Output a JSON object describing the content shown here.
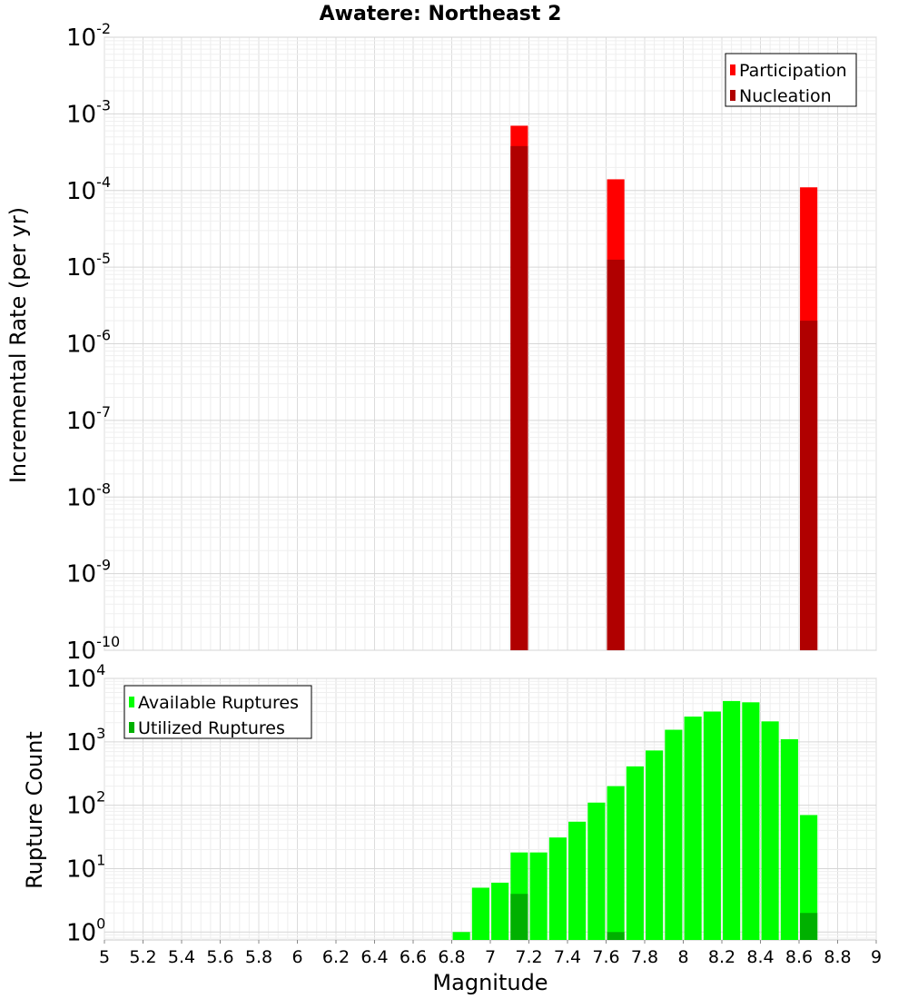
{
  "title": "Awatere: Northeast 2",
  "x_axis": {
    "label": "Magnitude",
    "range": [
      5,
      9
    ],
    "ticks": [
      "5",
      "5.2",
      "5.4",
      "5.6",
      "5.8",
      "6",
      "6.2",
      "6.4",
      "6.6",
      "6.8",
      "7",
      "7.2",
      "7.4",
      "7.6",
      "7.8",
      "8",
      "8.2",
      "8.4",
      "8.6",
      "8.8",
      "9"
    ]
  },
  "chart_data": [
    {
      "type": "bar",
      "title": "Awatere: Northeast 2",
      "xlabel": "Magnitude",
      "ylabel": "Incremental Rate (per yr)",
      "yscale": "log",
      "ylim_exp": [
        -10,
        -2
      ],
      "y_tick_base": "10",
      "y_tick_exponents": [
        "-10",
        "-9",
        "-8",
        "-7",
        "-6",
        "-5",
        "-4",
        "-3",
        "-2"
      ],
      "legend_position": "top-right",
      "bar_width": 0.09,
      "series": [
        {
          "name": "Participation",
          "color": "#ff0000",
          "x": [
            7.15,
            7.65,
            8.65
          ],
          "values": [
            0.0007,
            0.00014,
            0.00011
          ]
        },
        {
          "name": "Nucleation",
          "color": "#b00000",
          "x": [
            7.15,
            7.65,
            8.65
          ],
          "values": [
            0.00038,
            1.25e-05,
            2e-06
          ]
        }
      ]
    },
    {
      "type": "bar",
      "xlabel": "Magnitude",
      "ylabel": "Rupture Count",
      "yscale": "log",
      "ylim": [
        0.75,
        10000
      ],
      "y_tick_base": "10",
      "y_tick_exponents": [
        "0",
        "1",
        "2",
        "3",
        "4"
      ],
      "legend_position": "top-left",
      "bar_width": 0.09,
      "series": [
        {
          "name": "Available Ruptures",
          "color": "#00ff00",
          "x": [
            6.85,
            6.95,
            7.05,
            7.15,
            7.25,
            7.35,
            7.45,
            7.55,
            7.65,
            7.75,
            7.85,
            7.95,
            8.05,
            8.15,
            8.25,
            8.35,
            8.45,
            8.55,
            8.65
          ],
          "values": [
            1,
            5,
            6,
            18,
            18,
            31,
            55,
            110,
            200,
            410,
            730,
            1550,
            2500,
            3000,
            4400,
            4200,
            2100,
            1100,
            70
          ]
        },
        {
          "name": "Utilized Ruptures",
          "color": "#00b000",
          "x": [
            7.15,
            7.65,
            8.65
          ],
          "values": [
            4,
            1,
            2
          ]
        }
      ]
    }
  ]
}
